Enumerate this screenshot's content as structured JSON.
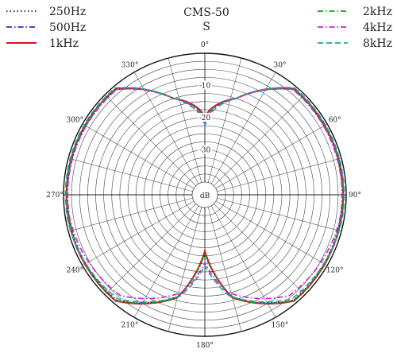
{
  "header": {
    "model": "CMS-50",
    "pattern": "S"
  },
  "chart_data": {
    "type": "polar_line",
    "title": "CMS-50",
    "subtitle": "S",
    "radial_unit": "dB",
    "radial_range": [
      -40,
      0
    ],
    "radial_ring_step": 2.5,
    "radial_tick_labels": [
      {
        "db": -10,
        "text": "-10"
      },
      {
        "db": -20,
        "text": "-20"
      },
      {
        "db": -30,
        "text": "-30"
      }
    ],
    "angle_spoke_step_deg": 15,
    "angle_labels": [
      {
        "deg": 0,
        "text": "0°"
      },
      {
        "deg": 30,
        "text": "30°"
      },
      {
        "deg": 60,
        "text": "60°"
      },
      {
        "deg": 90,
        "text": "90°"
      },
      {
        "deg": 120,
        "text": "120°"
      },
      {
        "deg": 150,
        "text": "150°"
      },
      {
        "deg": 180,
        "text": "180°"
      },
      {
        "deg": 210,
        "text": "210°"
      },
      {
        "deg": 240,
        "text": "240°"
      },
      {
        "deg": 270,
        "text": "270°"
      },
      {
        "deg": 300,
        "text": "300°"
      },
      {
        "deg": 330,
        "text": "330°"
      }
    ],
    "legend_placement": "top (left and right columns)",
    "series": [
      {
        "name": "250Hz",
        "color": "#222222",
        "style": "dotted",
        "side_peak_db": -1.2,
        "front_null_db": -21,
        "rear_null_db": -25.5,
        "rear_offset": 0
      },
      {
        "name": "500Hz",
        "color": "#2a2ad0",
        "style": "dashdot",
        "side_peak_db": -1.1,
        "front_null_db": -21,
        "rear_null_db": -26,
        "rear_offset": 0
      },
      {
        "name": "1kHz",
        "color": "#d8101c",
        "style": "solid",
        "side_peak_db": -0.9,
        "front_null_db": -20.5,
        "rear_null_db": -26.5,
        "rear_offset": 0
      },
      {
        "name": "2kHz",
        "color": "#1c9a1c",
        "style": "dashdot",
        "side_peak_db": -1.0,
        "front_null_db": -21,
        "rear_null_db": -26,
        "rear_offset": 0
      },
      {
        "name": "4kHz",
        "color": "#d020d0",
        "style": "dashdot",
        "side_peak_db": -1.3,
        "front_null_db": -22,
        "rear_null_db": -23,
        "rear_offset": -1.8
      },
      {
        "name": "8kHz",
        "color": "#18a8a8",
        "style": "dashed",
        "side_peak_db": -0.6,
        "front_null_db": -23,
        "rear_null_db": -22,
        "rear_offset": -1.2
      }
    ],
    "center_label": "dB"
  }
}
